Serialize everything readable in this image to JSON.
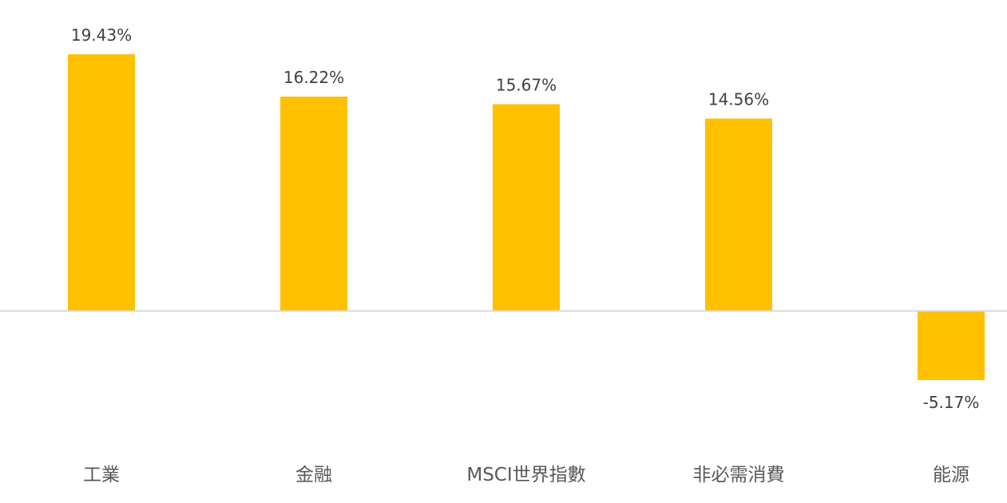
{
  "chart_data": {
    "type": "bar",
    "title": "",
    "xlabel": "",
    "ylabel": "",
    "categories": [
      "工業",
      "金融",
      "MSCI世界指數",
      "非必需消費",
      "能源"
    ],
    "values": [
      19.43,
      16.22,
      15.67,
      14.56,
      -5.17
    ],
    "data_labels": [
      "19.43%",
      "16.22%",
      "15.67%",
      "14.56%",
      "-5.17%"
    ],
    "unit": "%",
    "ylim": [
      -8,
      22
    ],
    "grid": false,
    "legend": "none",
    "colors": {
      "bar": "#FFC000",
      "axis": "#D9D9D9",
      "data_label": "#404040",
      "category_label": "#595959"
    }
  }
}
